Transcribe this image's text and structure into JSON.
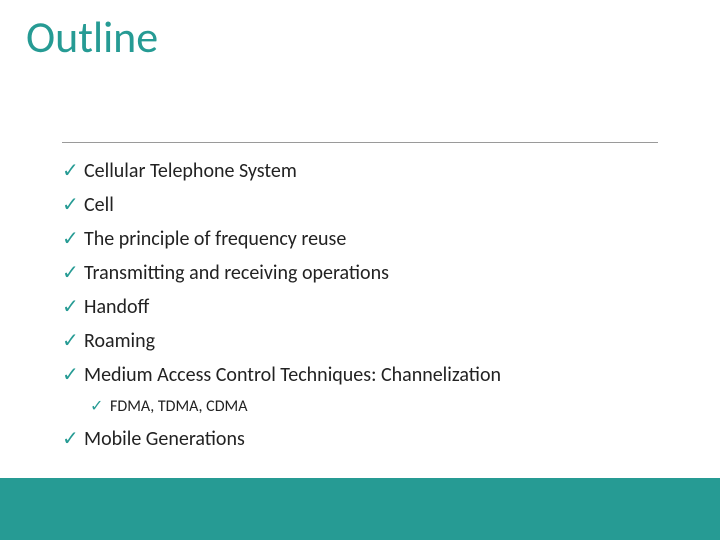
{
  "colors": {
    "title": "#269b94",
    "check": "#269b94",
    "text": "#2b2b2b",
    "divider": "#9a9a9a",
    "footer": "#269b94",
    "background": "#ffffff"
  },
  "title": "Outline",
  "items": [
    {
      "label": "Cellular Telephone System"
    },
    {
      "label": "Cell"
    },
    {
      "label": "The principle of frequency reuse"
    },
    {
      "label": "Transmitting and receiving operations"
    },
    {
      "label": "Handoff"
    },
    {
      "label": "Roaming"
    },
    {
      "label": "Medium Access Control Techniques: Channelization",
      "sub": [
        {
          "label": "FDMA, TDMA, CDMA"
        }
      ]
    },
    {
      "label": " Mobile Generations"
    }
  ],
  "bullet_glyph": "✓"
}
